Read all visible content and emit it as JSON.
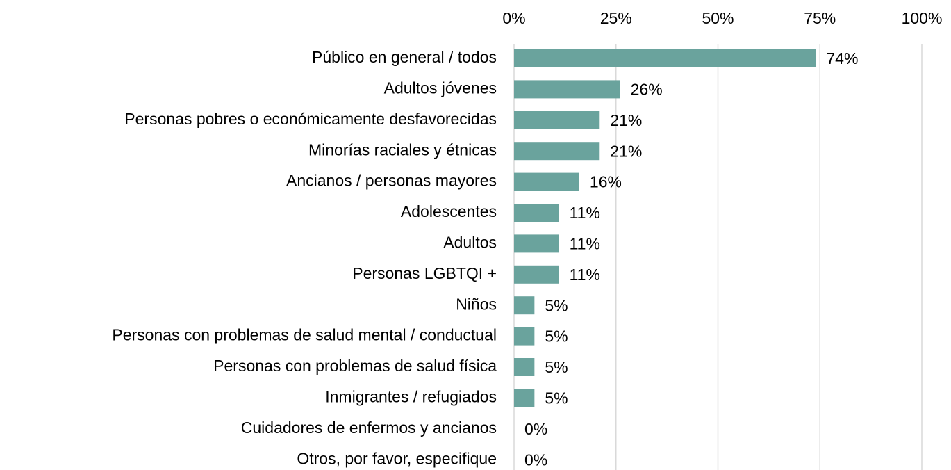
{
  "chart_data": {
    "type": "bar",
    "orientation": "horizontal",
    "categories": [
      "Público en general / todos",
      "Adultos jóvenes",
      "Personas pobres o económicamente desfavorecidas",
      "Minorías raciales y étnicas",
      "Ancianos / personas mayores",
      "Adolescentes",
      "Adultos",
      "Personas LGBTQI +",
      "Niños",
      "Personas con problemas de salud mental / conductual",
      "Personas con problemas de salud física",
      "Inmigrantes / refugiados",
      "Cuidadores de enfermos y ancianos",
      "Otros, por favor, especifique"
    ],
    "values": [
      74,
      26,
      21,
      21,
      16,
      11,
      11,
      11,
      5,
      5,
      5,
      5,
      0,
      0
    ],
    "value_labels": [
      "74%",
      "26%",
      "21%",
      "21%",
      "16%",
      "11%",
      "11%",
      "11%",
      "5%",
      "5%",
      "5%",
      "5%",
      "0%",
      "0%"
    ],
    "color": "#6aa39d",
    "xlim": [
      0,
      100
    ],
    "xticks": [
      {
        "value": 0,
        "label": "0%"
      },
      {
        "value": 25,
        "label": "25%"
      },
      {
        "value": 50,
        "label": "50%"
      },
      {
        "value": 75,
        "label": "75%"
      },
      {
        "value": 100,
        "label": "100%"
      }
    ],
    "grid": true
  }
}
